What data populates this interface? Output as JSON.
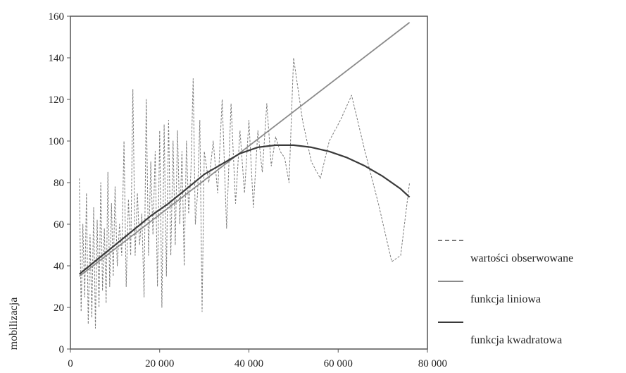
{
  "chart_data": {
    "type": "line",
    "xlabel": "",
    "ylabel": "mobilizacja",
    "xlim": [
      0,
      80000
    ],
    "ylim": [
      0,
      160
    ],
    "x_ticks": [
      0,
      20000,
      40000,
      60000,
      80000
    ],
    "x_tick_labels": [
      "0",
      "20 000",
      "40 000",
      "60 000",
      "80 000"
    ],
    "y_ticks": [
      0,
      20,
      40,
      60,
      80,
      100,
      120,
      140,
      160
    ],
    "y_tick_labels": [
      "0",
      "20",
      "40",
      "60",
      "80",
      "100",
      "120",
      "140",
      "160"
    ],
    "grid": false,
    "legend_position": "right",
    "series": [
      {
        "name": "wartości obserwowane",
        "style": "dashed",
        "color": "#7a7a7a",
        "x": [
          2000,
          2400,
          2800,
          3200,
          3600,
          4000,
          4400,
          4800,
          5200,
          5600,
          6000,
          6400,
          6800,
          7200,
          7600,
          8000,
          8400,
          8800,
          9200,
          9600,
          10000,
          10500,
          11000,
          11500,
          12000,
          12500,
          13000,
          13500,
          14000,
          14500,
          15000,
          15500,
          16000,
          16500,
          17000,
          17500,
          18000,
          18500,
          19000,
          19500,
          20000,
          20500,
          21000,
          21500,
          22000,
          22500,
          23000,
          23500,
          24000,
          24500,
          25000,
          25500,
          26000,
          26500,
          27000,
          27500,
          28000,
          28500,
          29000,
          29500,
          30000,
          31000,
          32000,
          33000,
          34000,
          35000,
          36000,
          37000,
          38000,
          39000,
          40000,
          41000,
          42000,
          43000,
          44000,
          45000,
          46000,
          47000,
          48000,
          49000,
          50000,
          52000,
          54000,
          56000,
          58000,
          60500,
          63000,
          66000,
          69000,
          72000,
          74000,
          76000
        ],
        "values": [
          82,
          18,
          60,
          25,
          75,
          12,
          55,
          15,
          68,
          10,
          62,
          20,
          80,
          28,
          58,
          22,
          85,
          30,
          70,
          35,
          78,
          40,
          60,
          45,
          100,
          30,
          72,
          45,
          125,
          45,
          75,
          50,
          65,
          25,
          120,
          45,
          90,
          55,
          95,
          30,
          105,
          20,
          108,
          35,
          110,
          45,
          100,
          50,
          105,
          60,
          95,
          40,
          100,
          65,
          85,
          130,
          60,
          75,
          110,
          18,
          95,
          80,
          100,
          75,
          120,
          58,
          118,
          70,
          105,
          75,
          110,
          68,
          105,
          85,
          118,
          88,
          102,
          95,
          92,
          80,
          140,
          110,
          90,
          82,
          100,
          110,
          122,
          95,
          70,
          42,
          45,
          80
        ]
      },
      {
        "name": "funkcja liniowa",
        "style": "solid",
        "color": "#8a8a8a",
        "x": [
          2000,
          76000
        ],
        "values": [
          35,
          157
        ]
      },
      {
        "name": "funkcja kwadratowa",
        "style": "solid",
        "color": "#3a3a3a",
        "x": [
          2000,
          6000,
          10000,
          14000,
          18000,
          22000,
          26000,
          30000,
          34000,
          38000,
          42000,
          46000,
          50000,
          54000,
          58000,
          62000,
          66000,
          70000,
          74000,
          76000
        ],
        "values": [
          36,
          43,
          50,
          57,
          64,
          70,
          77,
          84,
          89,
          94,
          97,
          98,
          98,
          97,
          95,
          92,
          88,
          83,
          77,
          73
        ]
      }
    ]
  }
}
